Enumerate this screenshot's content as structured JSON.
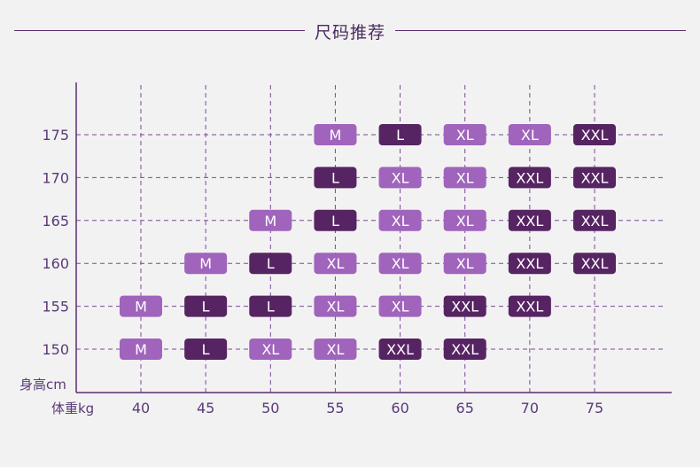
{
  "header": {
    "title": "尺码推荐"
  },
  "colors": {
    "M": "#a064bc",
    "L": "#572463",
    "XL": "#a064bc",
    "XXL": "#572463",
    "axis": "#5a2d6e",
    "grid": "#7a4a9a",
    "background": "#f2f2f2"
  },
  "chart_data": {
    "type": "table",
    "x_axis_label": "体重kg",
    "y_axis_label": "身高cm",
    "x_ticks": [
      40,
      45,
      50,
      55,
      60,
      65,
      70,
      75
    ],
    "y_ticks": [
      175,
      170,
      165,
      160,
      155,
      150
    ],
    "grid": true,
    "cells": [
      {
        "weight": 55,
        "height": 175,
        "size": "M"
      },
      {
        "weight": 60,
        "height": 175,
        "size": "L"
      },
      {
        "weight": 65,
        "height": 175,
        "size": "XL"
      },
      {
        "weight": 70,
        "height": 175,
        "size": "XL"
      },
      {
        "weight": 75,
        "height": 175,
        "size": "XXL"
      },
      {
        "weight": 55,
        "height": 170,
        "size": "L"
      },
      {
        "weight": 60,
        "height": 170,
        "size": "XL"
      },
      {
        "weight": 65,
        "height": 170,
        "size": "XL"
      },
      {
        "weight": 70,
        "height": 170,
        "size": "XXL"
      },
      {
        "weight": 75,
        "height": 170,
        "size": "XXL"
      },
      {
        "weight": 50,
        "height": 165,
        "size": "M"
      },
      {
        "weight": 55,
        "height": 165,
        "size": "L"
      },
      {
        "weight": 60,
        "height": 165,
        "size": "XL"
      },
      {
        "weight": 65,
        "height": 165,
        "size": "XL"
      },
      {
        "weight": 70,
        "height": 165,
        "size": "XXL"
      },
      {
        "weight": 75,
        "height": 165,
        "size": "XXL"
      },
      {
        "weight": 45,
        "height": 160,
        "size": "M"
      },
      {
        "weight": 50,
        "height": 160,
        "size": "L"
      },
      {
        "weight": 55,
        "height": 160,
        "size": "XL"
      },
      {
        "weight": 60,
        "height": 160,
        "size": "XL"
      },
      {
        "weight": 65,
        "height": 160,
        "size": "XL"
      },
      {
        "weight": 70,
        "height": 160,
        "size": "XXL"
      },
      {
        "weight": 75,
        "height": 160,
        "size": "XXL"
      },
      {
        "weight": 40,
        "height": 155,
        "size": "M"
      },
      {
        "weight": 45,
        "height": 155,
        "size": "L"
      },
      {
        "weight": 50,
        "height": 155,
        "size": "L"
      },
      {
        "weight": 55,
        "height": 155,
        "size": "XL"
      },
      {
        "weight": 60,
        "height": 155,
        "size": "XL"
      },
      {
        "weight": 65,
        "height": 155,
        "size": "XXL"
      },
      {
        "weight": 70,
        "height": 155,
        "size": "XXL"
      },
      {
        "weight": 40,
        "height": 150,
        "size": "M"
      },
      {
        "weight": 45,
        "height": 150,
        "size": "L"
      },
      {
        "weight": 50,
        "height": 150,
        "size": "XL"
      },
      {
        "weight": 55,
        "height": 150,
        "size": "XL"
      },
      {
        "weight": 60,
        "height": 150,
        "size": "XXL"
      },
      {
        "weight": 65,
        "height": 150,
        "size": "XXL"
      }
    ]
  }
}
